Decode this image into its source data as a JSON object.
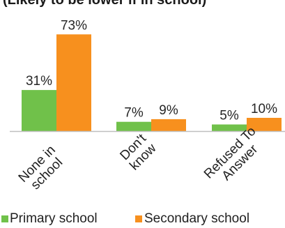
{
  "chart_data": {
    "type": "bar",
    "title": "(Likely to be lower if in school)",
    "categories": [
      [
        "None in",
        "school"
      ],
      [
        "Don't",
        "know"
      ],
      [
        "Refused To",
        "Answer"
      ]
    ],
    "series": [
      {
        "name": "Primary school",
        "color": "#70c14a",
        "values": [
          31,
          7,
          5
        ],
        "labels": [
          "31%",
          "7%",
          "5%"
        ]
      },
      {
        "name": "Secondary school",
        "color": "#f7901e",
        "values": [
          73,
          9,
          10
        ],
        "labels": [
          "73%",
          "9%",
          "10%"
        ]
      }
    ],
    "ylim": [
      0,
      80
    ],
    "grid": false,
    "legend_position": "bottom",
    "axis_color": "#bfbfbf"
  }
}
